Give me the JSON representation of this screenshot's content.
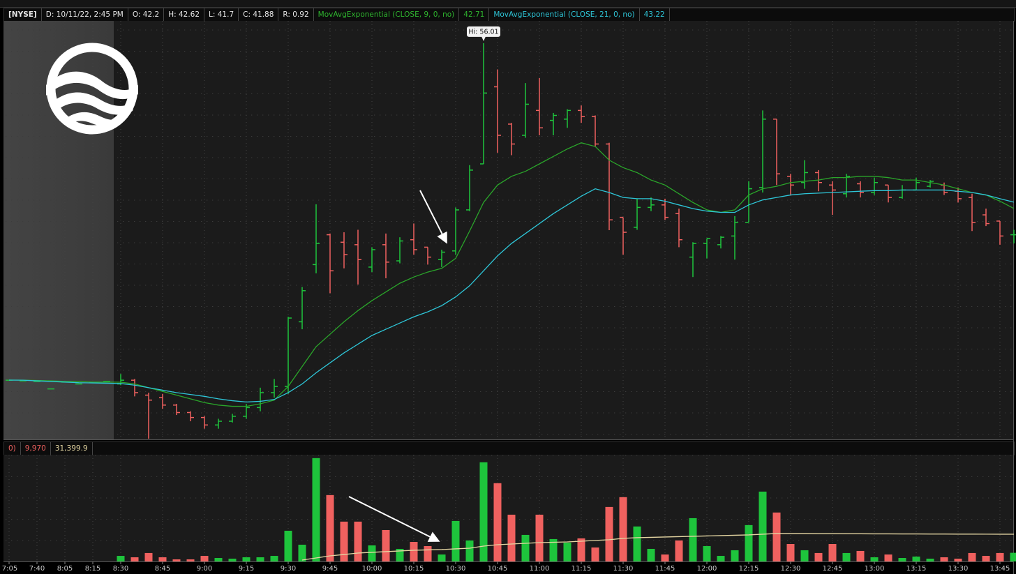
{
  "chart_data": [
    {
      "type": "candlestick",
      "exchange": "[NYSE]",
      "info": [
        "D: 10/11/22, 2:45 PM",
        "O: 42.2",
        "H: 42.62",
        "L: 41.7",
        "C: 41.88",
        "R: 0.92"
      ],
      "hi_label": "Hi: 56.01",
      "up_color": "#1ec43c",
      "down_color": "#f0615f",
      "ylim": [
        24.14,
        57.8
      ],
      "open": [
        28.9,
        28.85,
        28.8,
        28.2,
        28.75,
        28.6,
        28.7,
        28.8,
        28.6,
        28.9,
        27.7,
        27.5,
        26.9,
        26.3,
        25.9,
        25.3,
        25.6,
        26.0,
        26.7,
        27.9,
        28.4,
        33.6,
        38.2,
        40.6,
        40.0,
        39.8,
        38.0,
        39.8,
        38.5,
        40.2,
        39.6,
        38.6,
        39.3,
        42.6,
        46.3,
        52.5,
        49.5,
        48.6,
        50.6,
        49.8,
        49.9,
        50.6,
        50.1,
        47.9,
        42.0,
        41.2,
        42.8,
        43.0,
        42.3,
        38.8,
        39.9,
        39.8,
        40.5,
        41.6,
        44.4,
        49.9,
        45.3,
        44.8,
        45.6,
        44.6,
        43.9,
        44.7,
        44.0,
        44.6,
        43.6,
        44.2,
        44.5,
        44.6,
        44.1,
        43.6,
        42.2,
        41.7,
        40.6
      ],
      "high": [
        28.9,
        28.85,
        28.8,
        28.2,
        28.75,
        28.6,
        28.7,
        28.8,
        29.4,
        29.0,
        27.9,
        27.8,
        27.0,
        26.4,
        26.0,
        25.8,
        26.2,
        27.0,
        28.3,
        29.0,
        34.0,
        36.4,
        43.05,
        40.7,
        40.8,
        41.0,
        39.6,
        40.7,
        40.4,
        41.5,
        39.6,
        39.4,
        42.8,
        46.2,
        56.01,
        53.9,
        49.6,
        52.8,
        53.2,
        50.4,
        50.7,
        51.0,
        50.2,
        48.0,
        42.0,
        43.5,
        43.6,
        43.5,
        42.7,
        40.0,
        40.3,
        40.5,
        42.1,
        44.9,
        50.6,
        49.9,
        45.5,
        46.6,
        45.8,
        44.9,
        45.5,
        44.9,
        45.2,
        44.6,
        44.6,
        45.2,
        45.0,
        44.8,
        44.4,
        43.9,
        42.7,
        41.7,
        41.0
      ],
      "low": [
        28.9,
        28.85,
        28.8,
        28.2,
        28.75,
        28.6,
        28.7,
        28.8,
        28.5,
        27.6,
        24.2,
        26.6,
        26.1,
        25.6,
        25.0,
        25.0,
        25.5,
        25.8,
        26.4,
        27.5,
        27.8,
        33.0,
        37.5,
        35.9,
        37.9,
        36.6,
        37.6,
        37.1,
        38.3,
        39.0,
        38.2,
        38.0,
        39.0,
        42.5,
        46.3,
        47.2,
        47.0,
        48.4,
        48.6,
        48.6,
        49.2,
        49.6,
        47.7,
        40.97,
        39.0,
        41.0,
        42.5,
        41.8,
        39.6,
        37.2,
        38.7,
        39.5,
        38.6,
        41.6,
        44.0,
        44.6,
        43.8,
        44.3,
        44.1,
        42.2,
        43.6,
        43.6,
        43.8,
        43.2,
        43.5,
        44.2,
        44.4,
        43.8,
        43.2,
        40.9,
        41.3,
        39.8,
        39.9
      ],
      "close": [
        28.9,
        28.85,
        28.8,
        28.2,
        28.75,
        28.6,
        28.7,
        28.8,
        28.9,
        27.9,
        27.3,
        26.9,
        26.3,
        25.9,
        25.3,
        25.6,
        26.0,
        26.7,
        27.9,
        28.4,
        33.9,
        36.1,
        39.9,
        37.7,
        39.0,
        38.6,
        39.4,
        38.4,
        40.1,
        39.4,
        38.8,
        39.2,
        42.6,
        45.8,
        52.0,
        48.6,
        47.9,
        51.1,
        49.2,
        50.2,
        50.6,
        50.1,
        47.9,
        41.8,
        40.8,
        42.8,
        43.0,
        42.0,
        40.2,
        39.9,
        40.3,
        40.4,
        41.6,
        44.3,
        49.9,
        45.5,
        44.6,
        45.6,
        44.8,
        44.2,
        45.3,
        44.0,
        44.8,
        43.6,
        44.2,
        44.8,
        44.9,
        44.0,
        43.5,
        41.6,
        41.5,
        40.5,
        40.6
      ],
      "series": [
        {
          "name": "MovAvgExponential (CLOSE, 9, 0, no)",
          "color": "#2aa52a",
          "current": 42.71,
          "values": [
            28.91,
            28.91,
            28.88,
            28.85,
            28.8,
            28.8,
            28.75,
            28.75,
            28.74,
            28.6,
            28.3,
            28.0,
            27.7,
            27.4,
            27.1,
            26.9,
            26.8,
            26.8,
            27.0,
            27.3,
            28.4,
            30.0,
            31.6,
            32.6,
            33.6,
            34.5,
            35.3,
            36.0,
            36.7,
            37.2,
            37.6,
            37.9,
            38.7,
            40.9,
            43.2,
            44.6,
            45.3,
            45.7,
            46.3,
            46.9,
            47.5,
            48.0,
            47.7,
            46.6,
            46.0,
            45.6,
            45.0,
            44.6,
            43.9,
            43.2,
            42.6,
            42.4,
            42.6,
            43.8,
            44.3,
            44.5,
            44.8,
            44.9,
            45.0,
            45.2,
            45.2,
            45.3,
            45.3,
            45.2,
            45.0,
            45.0,
            44.8,
            44.6,
            44.3,
            44.0,
            43.8,
            43.3,
            42.71
          ]
        },
        {
          "name": "MovAvgExponential (CLOSE, 21, 0, no)",
          "color": "#2ec6d8",
          "current": 43.22,
          "values": [
            28.91,
            28.9,
            28.85,
            28.8,
            28.75,
            28.7,
            28.68,
            28.66,
            28.63,
            28.5,
            28.3,
            28.1,
            27.9,
            27.75,
            27.6,
            27.4,
            27.25,
            27.15,
            27.2,
            27.35,
            27.9,
            28.6,
            29.5,
            30.3,
            31.1,
            31.8,
            32.5,
            33.0,
            33.5,
            34.0,
            34.4,
            34.9,
            35.6,
            36.5,
            37.7,
            38.9,
            39.9,
            40.7,
            41.5,
            42.3,
            43.0,
            43.7,
            44.3,
            44.0,
            43.6,
            43.5,
            43.5,
            43.3,
            43.0,
            42.7,
            42.5,
            42.4,
            42.4,
            43.0,
            43.4,
            43.6,
            43.8,
            43.9,
            43.95,
            44.0,
            44.05,
            44.1,
            44.15,
            44.15,
            44.2,
            44.2,
            44.2,
            44.2,
            44.1,
            44.0,
            43.8,
            43.5,
            43.22
          ]
        }
      ]
    },
    {
      "type": "bar",
      "header_fragment": "0)",
      "current": {
        "value": 9970,
        "label": "9,970"
      },
      "ylim": [
        0,
        123000
      ],
      "categories": [
        "7:05",
        null,
        "7:40",
        null,
        "8:05",
        null,
        "8:15",
        null,
        "8:30",
        null,
        null,
        "8:45",
        null,
        null,
        "9:00",
        null,
        null,
        "9:15",
        null,
        null,
        "9:30",
        null,
        null,
        "9:45",
        null,
        null,
        "10:00",
        null,
        null,
        "10:15",
        null,
        null,
        "10:30",
        null,
        null,
        "10:45",
        null,
        null,
        "11:00",
        null,
        null,
        "11:15",
        null,
        null,
        "11:30",
        null,
        null,
        "11:45",
        null,
        null,
        "12:00",
        null,
        null,
        "12:15",
        null,
        null,
        "12:30",
        null,
        null,
        "12:45",
        null,
        null,
        "13:00",
        null,
        null,
        "13:15",
        null,
        null,
        "13:30",
        null,
        null,
        "13:45",
        null
      ],
      "values": [
        null,
        null,
        null,
        null,
        null,
        null,
        null,
        null,
        6400,
        4800,
        9700,
        4800,
        2400,
        2400,
        6400,
        4000,
        3200,
        4800,
        4800,
        6400,
        35400,
        19300,
        119100,
        76500,
        45900,
        45900,
        18500,
        36200,
        14500,
        22500,
        17700,
        8000,
        46700,
        24200,
        114300,
        90200,
        53900,
        30600,
        53900,
        25800,
        21700,
        26600,
        16100,
        62800,
        74100,
        40300,
        14500,
        8000,
        24200,
        49900,
        17700,
        6400,
        12900,
        41900,
        80500,
        56400,
        20100,
        12900,
        9700,
        20100,
        9700,
        12100,
        4800,
        8000,
        4000,
        5600,
        3200,
        4800,
        3200,
        9700,
        6400,
        9700,
        9970
      ],
      "series": [
        {
          "color": "#e6d7a3",
          "current": {
            "value": 31399.9,
            "label": "31,399.9"
          },
          "values": [
            null,
            null,
            null,
            null,
            null,
            null,
            null,
            null,
            null,
            null,
            null,
            null,
            null,
            null,
            null,
            null,
            null,
            null,
            null,
            null,
            null,
            1600,
            4000,
            6400,
            8000,
            9700,
            10500,
            11300,
            12100,
            12900,
            13300,
            13700,
            14500,
            15300,
            17700,
            19300,
            20100,
            20900,
            21700,
            22100,
            22500,
            23300,
            24200,
            25000,
            26600,
            27400,
            27800,
            28200,
            28600,
            29000,
            29400,
            29800,
            30200,
            30600,
            31400,
            32200,
            32200,
            32200,
            32000,
            32000,
            31900,
            31900,
            31800,
            31800,
            31700,
            31700,
            31600,
            31600,
            31500,
            31500,
            31450,
            31420,
            31399.9
          ]
        }
      ]
    }
  ]
}
